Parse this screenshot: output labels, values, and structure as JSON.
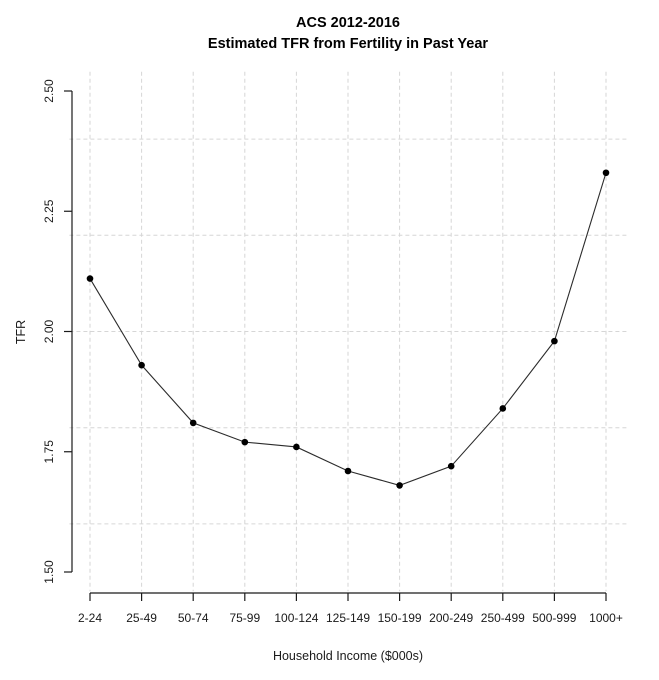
{
  "chart_data": {
    "type": "line",
    "title": "ACS 2012-2016",
    "subtitle": "Estimated TFR from Fertility in Past Year",
    "xlabel": "Household Income ($000s)",
    "ylabel": "TFR",
    "categories": [
      "2-24",
      "25-49",
      "50-74",
      "75-99",
      "100-124",
      "125-149",
      "150-199",
      "200-249",
      "250-499",
      "500-999",
      "1000+"
    ],
    "values": [
      2.11,
      1.93,
      1.81,
      1.77,
      1.76,
      1.71,
      1.68,
      1.72,
      1.84,
      1.98,
      2.33
    ],
    "y_ticks": [
      "1.50",
      "1.75",
      "2.00",
      "2.25",
      "2.50"
    ],
    "ylim": [
      1.5,
      2.5
    ],
    "marker": "filled-circle",
    "legend": "none",
    "grid": {
      "horizontal_values": [
        1.6,
        1.8,
        2.0,
        2.2,
        2.4
      ],
      "vertical": "one dashed line per category",
      "style": "dashed"
    },
    "colors": {
      "line": "#2b2b2b",
      "point": "#000000",
      "grid": "#d6d6d6",
      "text": "#1a1a1a",
      "axis": "#1a1a1a",
      "background": "#ffffff"
    }
  }
}
